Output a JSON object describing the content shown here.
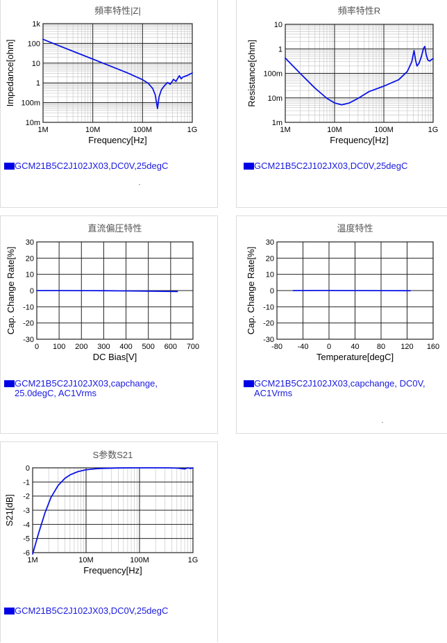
{
  "chart_data": [
    {
      "type": "line",
      "title": "頻率特性|Z|",
      "xlabel": "Frequency[Hz]",
      "ylabel": "Impedance[ohm]",
      "xscale": "log",
      "yscale": "log",
      "xlim": [
        1000000,
        1000000000
      ],
      "ylim": [
        0.01,
        1000
      ],
      "xticks": [
        {
          "v": 1000000,
          "label": "1M"
        },
        {
          "v": 10000000,
          "label": "10M"
        },
        {
          "v": 100000000,
          "label": "100M"
        },
        {
          "v": 1000000000,
          "label": "1G"
        }
      ],
      "yticks": [
        {
          "v": 0.01,
          "label": "10m"
        },
        {
          "v": 0.1,
          "label": "100m"
        },
        {
          "v": 1,
          "label": "1"
        },
        {
          "v": 10,
          "label": "10"
        },
        {
          "v": 100,
          "label": "100"
        },
        {
          "v": 1000,
          "label": "1k"
        }
      ],
      "grid": true,
      "legend": "GCM21B5C2J102JX03,DC0V,25degC",
      "series": [
        {
          "x": [
            1000000,
            2000000,
            5000000,
            10000000,
            20000000,
            50000000,
            100000000,
            130000000,
            160000000,
            180000000,
            200000000,
            215000000,
            240000000,
            280000000,
            320000000,
            360000000,
            420000000,
            470000000,
            550000000,
            600000000,
            650000000,
            700000000,
            800000000,
            1000000000
          ],
          "y": [
            160,
            80,
            32,
            16,
            8,
            3.2,
            1.45,
            0.95,
            0.52,
            0.25,
            0.05,
            0.2,
            0.45,
            0.75,
            1.05,
            0.85,
            1.5,
            1.2,
            2.3,
            1.6,
            2,
            2.1,
            2.4,
            3.2
          ]
        }
      ]
    },
    {
      "type": "line",
      "title": "頻率特性R",
      "xlabel": "Frequency[Hz]",
      "ylabel": "Resistance[ohm]",
      "xscale": "log",
      "yscale": "log",
      "xlim": [
        1000000,
        1000000000
      ],
      "ylim": [
        0.001,
        10
      ],
      "xticks": [
        {
          "v": 1000000,
          "label": "1M"
        },
        {
          "v": 10000000,
          "label": "10M"
        },
        {
          "v": 100000000,
          "label": "100M"
        },
        {
          "v": 1000000000,
          "label": "1G"
        }
      ],
      "yticks": [
        {
          "v": 0.001,
          "label": "1m"
        },
        {
          "v": 0.01,
          "label": "10m"
        },
        {
          "v": 0.1,
          "label": "100m"
        },
        {
          "v": 1,
          "label": "1"
        },
        {
          "v": 10,
          "label": "10"
        }
      ],
      "grid": true,
      "legend": "GCM21B5C2J102JX03,DC0V,25degC",
      "series": [
        {
          "x": [
            1000000,
            2000000,
            4000000,
            7000000,
            10000000,
            14000000,
            20000000,
            30000000,
            50000000,
            100000000,
            200000000,
            300000000,
            370000000,
            410000000,
            440000000,
            470000000,
            520000000,
            580000000,
            640000000,
            680000000,
            720000000,
            780000000,
            850000000,
            1000000000
          ],
          "y": [
            0.42,
            0.1,
            0.025,
            0.0095,
            0.0062,
            0.0052,
            0.0062,
            0.0095,
            0.018,
            0.03,
            0.055,
            0.12,
            0.3,
            0.85,
            0.35,
            0.2,
            0.26,
            0.5,
            1.05,
            1.25,
            0.6,
            0.35,
            0.32,
            0.4
          ]
        }
      ]
    },
    {
      "type": "line",
      "title": "直流偏圧特性",
      "xlabel": "DC Bias[V]",
      "ylabel": "Cap. Change Rate[%]",
      "xscale": "linear",
      "yscale": "linear",
      "xlim": [
        0,
        700
      ],
      "ylim": [
        -30,
        30
      ],
      "xticks": [
        {
          "v": 0,
          "label": "0"
        },
        {
          "v": 100,
          "label": "100"
        },
        {
          "v": 200,
          "label": "200"
        },
        {
          "v": 300,
          "label": "300"
        },
        {
          "v": 400,
          "label": "400"
        },
        {
          "v": 500,
          "label": "500"
        },
        {
          "v": 600,
          "label": "600"
        },
        {
          "v": 700,
          "label": "700"
        }
      ],
      "yticks": [
        {
          "v": -30,
          "label": "-30"
        },
        {
          "v": -20,
          "label": "-20"
        },
        {
          "v": -10,
          "label": "-10"
        },
        {
          "v": 0,
          "label": "0"
        },
        {
          "v": 10,
          "label": "10"
        },
        {
          "v": 20,
          "label": "20"
        },
        {
          "v": 30,
          "label": "30"
        }
      ],
      "grid": true,
      "legend": "GCM21B5C2J102JX03,capchange,\n25.0degC, AC1Vrms",
      "series": [
        {
          "x": [
            0,
            100,
            200,
            300,
            400,
            500,
            630
          ],
          "y": [
            0,
            0,
            -0.05,
            -0.1,
            -0.2,
            -0.35,
            -0.6
          ]
        }
      ]
    },
    {
      "type": "line",
      "title": "温度特性",
      "xlabel": "Temperature[degC]",
      "ylabel": "Cap. Change Rate[%]",
      "xscale": "linear",
      "yscale": "linear",
      "xlim": [
        -80,
        160
      ],
      "ylim": [
        -30,
        30
      ],
      "xticks": [
        {
          "v": -80,
          "label": "-80"
        },
        {
          "v": -40,
          "label": "-40"
        },
        {
          "v": 0,
          "label": "0"
        },
        {
          "v": 40,
          "label": "40"
        },
        {
          "v": 80,
          "label": "80"
        },
        {
          "v": 120,
          "label": "120"
        },
        {
          "v": 160,
          "label": "160"
        }
      ],
      "yticks": [
        {
          "v": -30,
          "label": "-30"
        },
        {
          "v": -20,
          "label": "-20"
        },
        {
          "v": -10,
          "label": "-10"
        },
        {
          "v": 0,
          "label": "0"
        },
        {
          "v": 10,
          "label": "10"
        },
        {
          "v": 20,
          "label": "20"
        },
        {
          "v": 30,
          "label": "30"
        }
      ],
      "grid": true,
      "legend": "GCM21B5C2J102JX03,capchange, DC0V,\nAC1Vrms",
      "series": [
        {
          "x": [
            -55,
            -25,
            0,
            25,
            50,
            85,
            125
          ],
          "y": [
            0,
            0.05,
            0.05,
            0,
            0,
            -0.05,
            -0.1
          ]
        }
      ]
    },
    {
      "type": "line",
      "title": "S参数S21",
      "xlabel": "Frequency[Hz]",
      "ylabel": "S21[dB]",
      "xscale": "log",
      "yscale": "linear",
      "xlim": [
        1000000,
        1000000000
      ],
      "ylim": [
        -6,
        0
      ],
      "xticks": [
        {
          "v": 1000000,
          "label": "1M"
        },
        {
          "v": 10000000,
          "label": "10M"
        },
        {
          "v": 100000000,
          "label": "100M"
        },
        {
          "v": 1000000000,
          "label": "1G"
        }
      ],
      "yticks": [
        {
          "v": -6,
          "label": "-6"
        },
        {
          "v": -5,
          "label": "-5"
        },
        {
          "v": -4,
          "label": "-4"
        },
        {
          "v": -3,
          "label": "-3"
        },
        {
          "v": -2,
          "label": "-2"
        },
        {
          "v": -1,
          "label": "-1"
        },
        {
          "v": 0,
          "label": "0"
        }
      ],
      "grid": true,
      "legend": "GCM21B5C2J102JX03,DC0V,25degC",
      "series": [
        {
          "x": [
            1000000,
            1300000,
            1700000,
            2200000,
            3000000,
            4000000,
            5000000,
            7000000,
            10000000,
            15000000,
            20000000,
            40000000,
            100000000,
            300000000,
            500000000,
            700000000,
            800000000,
            900000000,
            1000000000
          ],
          "y": [
            -6.1,
            -4.6,
            -3.2,
            -2.1,
            -1.25,
            -0.75,
            -0.5,
            -0.27,
            -0.14,
            -0.07,
            -0.04,
            -0.01,
            0,
            0,
            -0.02,
            -0.08,
            0,
            -0.05,
            0
          ]
        }
      ]
    }
  ]
}
